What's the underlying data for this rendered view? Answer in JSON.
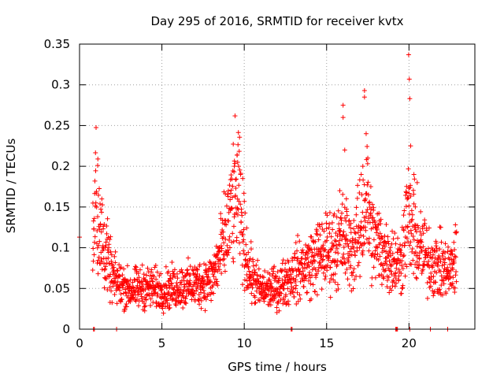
{
  "chart_data": {
    "type": "scatter",
    "title": "Day 295 of 2016, SRMTID for receiver kvtx",
    "xlabel": "GPS time / hours",
    "ylabel": "SRMTID / TECUs",
    "xlim": [
      0,
      24
    ],
    "ylim": [
      0,
      0.35
    ],
    "xticks": [
      "0",
      "5",
      "10",
      "15",
      "20"
    ],
    "xtick_values": [
      0,
      5,
      10,
      15,
      20
    ],
    "yticks": [
      "0",
      "0.05",
      "0.1",
      "0.15",
      "0.2",
      "0.25",
      "0.3",
      "0.35"
    ],
    "ytick_values": [
      0,
      0.05,
      0.1,
      0.15,
      0.2,
      0.25,
      0.3,
      0.35
    ],
    "grid": true,
    "marker": "plus",
    "series": [
      {
        "name": "SRMTID",
        "color": "#ff0000",
        "profile": [
          [
            0.0,
            0.113
          ],
          [
            0.8,
            0.095
          ],
          [
            1.0,
            0.16
          ],
          [
            1.2,
            0.13
          ],
          [
            1.5,
            0.1
          ],
          [
            2.0,
            0.062
          ],
          [
            3.0,
            0.048
          ],
          [
            4.0,
            0.052
          ],
          [
            5.0,
            0.048
          ],
          [
            6.0,
            0.052
          ],
          [
            7.0,
            0.055
          ],
          [
            8.0,
            0.06
          ],
          [
            8.7,
            0.1
          ],
          [
            9.3,
            0.15
          ],
          [
            9.6,
            0.17
          ],
          [
            9.9,
            0.12
          ],
          [
            10.3,
            0.07
          ],
          [
            11.0,
            0.048
          ],
          [
            12.0,
            0.05
          ],
          [
            12.8,
            0.065
          ],
          [
            13.5,
            0.075
          ],
          [
            14.0,
            0.08
          ],
          [
            14.5,
            0.09
          ],
          [
            15.0,
            0.095
          ],
          [
            15.5,
            0.1
          ],
          [
            16.0,
            0.11
          ],
          [
            16.5,
            0.095
          ],
          [
            17.0,
            0.115
          ],
          [
            17.4,
            0.16
          ],
          [
            17.8,
            0.11
          ],
          [
            18.5,
            0.095
          ],
          [
            19.0,
            0.085
          ],
          [
            19.5,
            0.08
          ],
          [
            19.9,
            0.14
          ],
          [
            20.2,
            0.12
          ],
          [
            20.6,
            0.1
          ],
          [
            21.0,
            0.09
          ],
          [
            21.5,
            0.08
          ],
          [
            22.0,
            0.075
          ],
          [
            22.5,
            0.07
          ],
          [
            22.9,
            0.09
          ]
        ],
        "spikes": [
          [
            1.1,
            0.201
          ],
          [
            9.4,
            0.2
          ],
          [
            9.6,
            0.205
          ],
          [
            16.0,
            0.275
          ],
          [
            16.0,
            0.26
          ],
          [
            16.1,
            0.22
          ],
          [
            17.3,
            0.293
          ],
          [
            17.3,
            0.285
          ],
          [
            17.4,
            0.24
          ],
          [
            17.2,
            0.2
          ],
          [
            19.98,
            0.337
          ],
          [
            20.02,
            0.307
          ],
          [
            20.05,
            0.283
          ],
          [
            20.1,
            0.225
          ],
          [
            20.3,
            0.19
          ],
          [
            15.8,
            0.17
          ],
          [
            16.2,
            0.16
          ],
          [
            20.5,
            0.18
          ],
          [
            17.1,
            0.19
          ],
          [
            17.5,
            0.21
          ]
        ],
        "zero_points": [
          0.85,
          0.9,
          2.25,
          12.85,
          12.9,
          19.2,
          19.25,
          19.3,
          20.05,
          21.3,
          22.35
        ]
      }
    ]
  }
}
